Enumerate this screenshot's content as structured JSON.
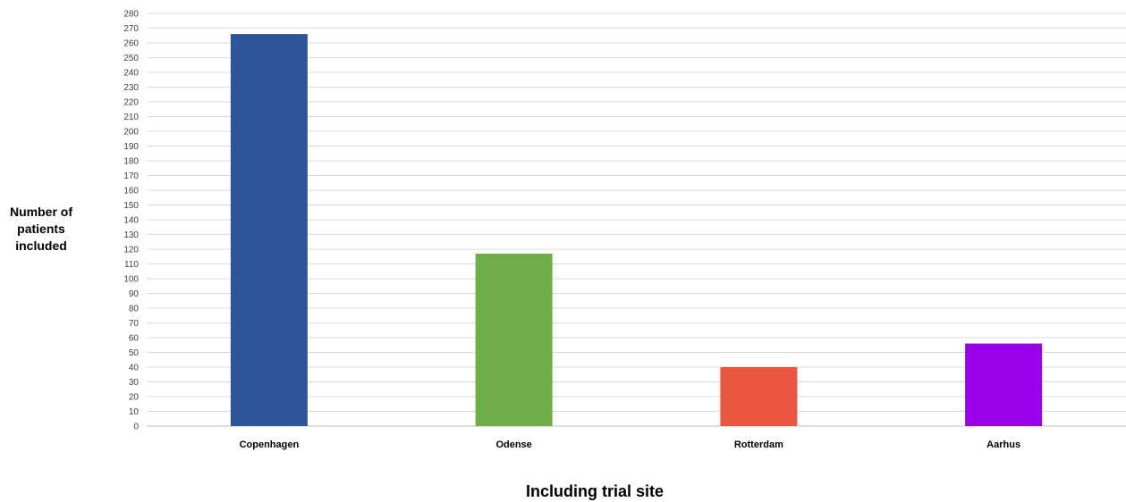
{
  "chart_data": {
    "type": "bar",
    "title": "",
    "categories": [
      "Copenhagen",
      "Odense",
      "Rotterdam",
      "Aarhus"
    ],
    "values": [
      266,
      117,
      40,
      56
    ],
    "colors": [
      "#2e5597",
      "#70ad47",
      "#eb5640",
      "#9a00e8"
    ],
    "xlabel": "Including trial site",
    "ylabel_lines": [
      "Number of",
      "patients",
      "included"
    ],
    "ylim": [
      0,
      280
    ],
    "ytick_step": 10,
    "grid": true
  }
}
